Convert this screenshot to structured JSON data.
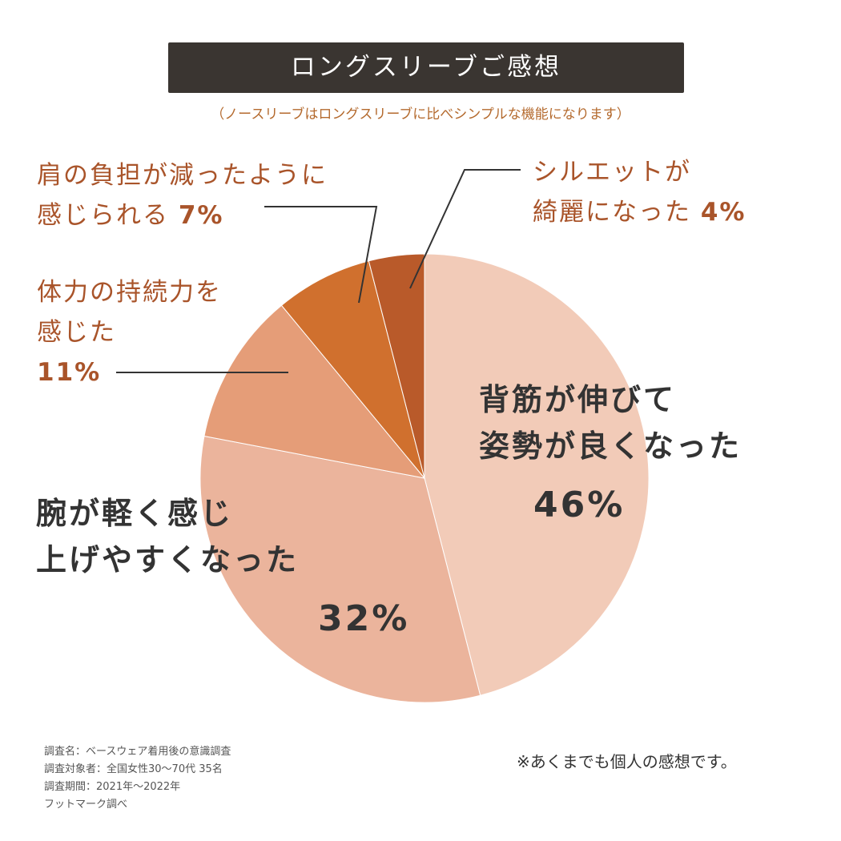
{
  "chart_data": {
    "type": "pie",
    "title": "ロングスリーブご感想",
    "subtitle": "（ノースリーブはロングスリーブに比べシンプルな機能になります）",
    "start": "top",
    "direction": "clockwise",
    "slices": [
      {
        "label": "背筋が伸びて姿勢が良くなった",
        "lines": [
          "背筋が伸びて",
          "姿勢が良くなった"
        ],
        "value": 46,
        "pct": "46%",
        "color": "#f2cbb8"
      },
      {
        "label": "腕が軽く感じ上げやすくなった",
        "lines": [
          "腕が軽く感じ",
          "上げやすくなった"
        ],
        "value": 32,
        "pct": "32%",
        "color": "#ebb49c"
      },
      {
        "label": "体力の持続力を感じた",
        "lines": [
          "体力の持続力を",
          "感じた"
        ],
        "value": 11,
        "pct": "11%",
        "color": "#e59d78"
      },
      {
        "label": "肩の負担が減ったように感じられる",
        "lines": [
          "肩の負担が減ったように",
          "感じられる"
        ],
        "value": 7,
        "pct": "7%",
        "color": "#d0702e"
      },
      {
        "label": "シルエットが綺麗になった",
        "lines": [
          "シルエットが",
          "綺麗になった"
        ],
        "value": 4,
        "pct": "4%",
        "color": "#b95a2a"
      }
    ]
  },
  "footer": {
    "lines": [
      "調査名：ベースウェア着用後の意識調査",
      "調査対象者：全国女性30〜70代 35名",
      "調査期間：2021年〜2022年",
      "フットマーク調べ"
    ],
    "note": "※あくまでも個人の感想です。"
  }
}
